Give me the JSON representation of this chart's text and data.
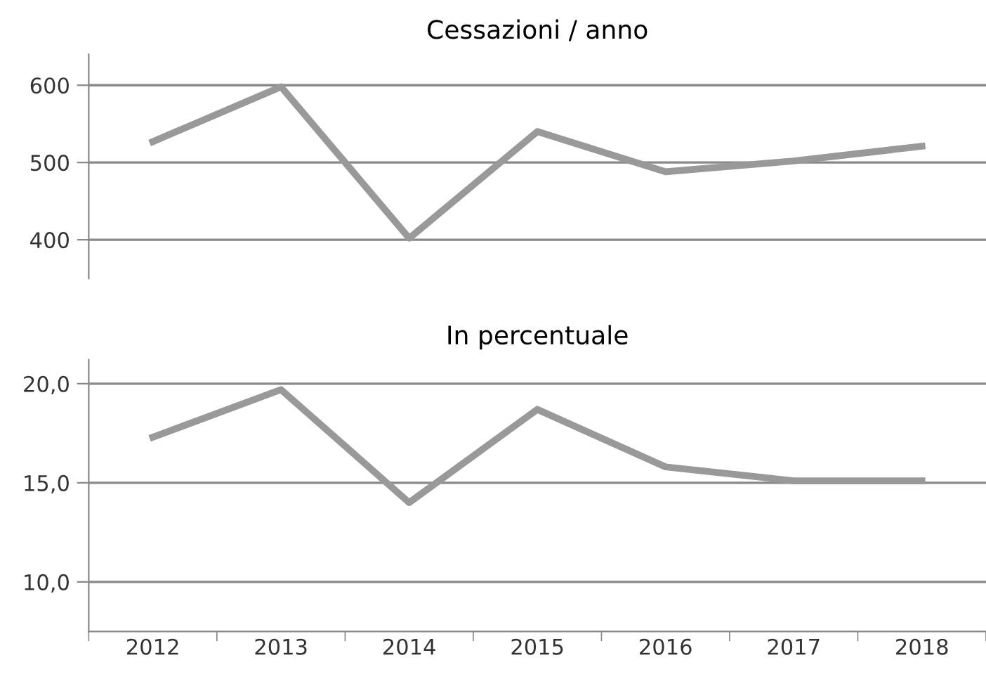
{
  "chart_data": [
    {
      "type": "line",
      "title": "Cessazioni / anno",
      "categories": [
        "2012",
        "2013",
        "2014",
        "2015",
        "2016",
        "2017",
        "2018"
      ],
      "series": [
        {
          "color": "#999999",
          "values": [
            527,
            598,
            402,
            540,
            488,
            502,
            521
          ]
        }
      ],
      "ylim": [
        350,
        640
      ],
      "yticks": [
        400,
        500,
        600
      ],
      "grid": "y",
      "tick_labels": "y"
    },
    {
      "type": "line",
      "title": "In percentuale",
      "categories": [
        "2012",
        "2013",
        "2014",
        "2015",
        "2016",
        "2017",
        "2018"
      ],
      "series": [
        {
          "color": "#999999",
          "values": [
            17.3,
            19.7,
            14.0,
            18.7,
            15.8,
            15.1,
            15.1
          ]
        }
      ],
      "ylim": [
        7.5,
        21.2
      ],
      "yticks": [
        {
          "value": 10,
          "label": "10,0"
        },
        {
          "value": 15,
          "label": "15,0"
        },
        {
          "value": 20,
          "label": "20,0"
        }
      ],
      "grid": "y"
    }
  ]
}
